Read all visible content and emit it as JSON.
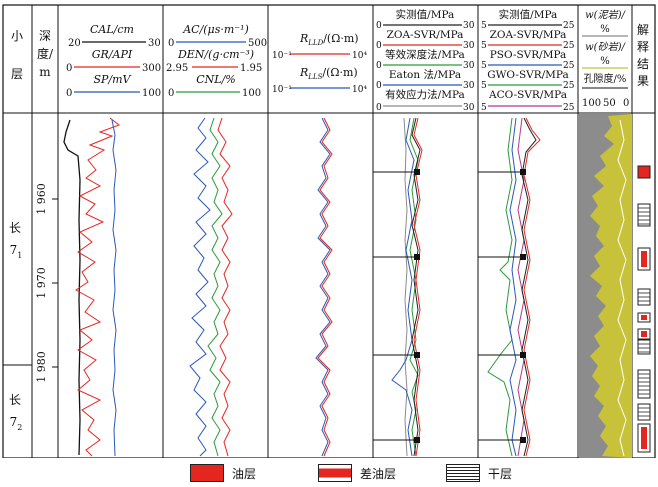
{
  "columns": {
    "layer_header": "小层",
    "depth_header_line1": "深度/",
    "depth_header_line2": "m",
    "interpretation_header": "解释结果"
  },
  "track1": {
    "cal_label": "CAL/cm",
    "cal_min": "20",
    "cal_max": "30",
    "gr_label": "GR/API",
    "gr_min": "0",
    "gr_max": "300",
    "sp_label": "SP/mV",
    "sp_min": "0",
    "sp_max": "100"
  },
  "track2": {
    "ac_label": "AC/(μs·m⁻¹)",
    "ac_min": "0",
    "ac_max": "500",
    "den_label": "DEN/(g·cm⁻³)",
    "den_min": "2.95",
    "den_max": "1.95",
    "cnl_label": "CNL/%",
    "cnl_min": "0",
    "cnl_max": "100"
  },
  "track3": {
    "rlld_label": "R",
    "rlld_sub": "LLD",
    "rlld_unit": "/(Ω·m)",
    "rlls_label": "R",
    "rlls_sub": "LLS",
    "rlls_unit": "/(Ω·m)",
    "scale_min": "10⁻¹",
    "scale_max": "10⁴"
  },
  "track4": {
    "rows": [
      {
        "label": "实测值/MPa",
        "min": "0",
        "max": "30",
        "color": "#222222"
      },
      {
        "label": "ZOA-SVR/MPa",
        "min": "0",
        "max": "30",
        "color": "#e52620"
      },
      {
        "label": "等效深度法/MPa",
        "min": "0",
        "max": "30",
        "color": "#2b9a3b"
      },
      {
        "label": "Eaton 法/MPa",
        "min": "0",
        "max": "30",
        "color": "#2b58b8"
      },
      {
        "label": "有效应力法/MPa",
        "min": "0",
        "max": "30",
        "color": "#8a8a8a"
      }
    ]
  },
  "track5": {
    "rows": [
      {
        "label": "实测值/MPa",
        "min": "5",
        "max": "25",
        "color": "#222222"
      },
      {
        "label": "ZOA-SVR/MPa",
        "min": "5",
        "max": "25",
        "color": "#e52620"
      },
      {
        "label": "PSO-SVR/MPa",
        "min": "5",
        "max": "25",
        "color": "#2b58b8"
      },
      {
        "label": "GWO-SVR/MPa",
        "min": "5",
        "max": "25",
        "color": "#2b9a3b"
      },
      {
        "label": "ACO-SVR/MPa",
        "min": "5",
        "max": "25",
        "color": "#b03a8a"
      }
    ]
  },
  "track6": {
    "mud_label": "w(泥岩)/",
    "pct1": "%",
    "sand_label": "w(砂岩)/",
    "pct2": "%",
    "porosity_label": "孔隙度/%",
    "scale_left": "100",
    "scale_mid": "50",
    "scale_right": "0"
  },
  "layers": [
    {
      "name": "长",
      "sub": "7",
      "subsub": "1"
    },
    {
      "name": "长",
      "sub": "7",
      "subsub": "2"
    }
  ],
  "depth_ticks": [
    "1 960",
    "1 970",
    "1 980"
  ],
  "legend": {
    "oil": "油层",
    "poor_oil": "差油层",
    "dry": "干层"
  },
  "colors": {
    "oil": "#e52620",
    "gr": "#e52620",
    "sp": "#2b58b8",
    "cal": "#111111",
    "ac": "#2b58b8",
    "den": "#e52620",
    "cnl": "#2b9a3b",
    "mud_fill": "#8c8c8c",
    "sand_fill": "#c8c23a"
  }
}
